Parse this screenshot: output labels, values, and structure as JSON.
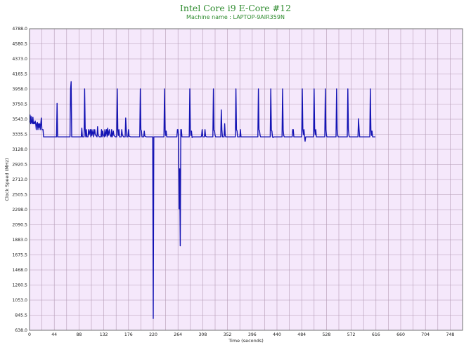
{
  "chart_data": {
    "type": "line",
    "title": "Intel Core i9 E-Core #12",
    "subtitle": "Machine name : LAPTOP-9AIR359N",
    "xlabel": "Time (seconds)",
    "ylabel": "Clock Speed (MHz)",
    "xlim": [
      0,
      770
    ],
    "ylim": [
      638.0,
      4788.0
    ],
    "xticks": [
      0,
      44,
      88,
      132,
      176,
      220,
      264,
      308,
      352,
      396,
      440,
      484,
      528,
      572,
      616,
      660,
      704,
      748
    ],
    "yticks": [
      "638.0",
      "845.5",
      "1053.0",
      "1260.5",
      "1468.0",
      "1675.5",
      "1883.0",
      "2090.5",
      "2298.0",
      "2505.5",
      "2713.0",
      "2920.5",
      "3128.0",
      "3335.5",
      "3543.0",
      "3750.5",
      "3958.0",
      "4165.5",
      "4373.0",
      "4580.5",
      "4788.0"
    ],
    "grid": true,
    "colors": {
      "line": "#1414b4",
      "plot_background": "#f5e8fb",
      "grid": "#b49ab4",
      "title": "#2e8b2e"
    },
    "series": [
      {
        "values": [
          [
            0,
            3500
          ],
          [
            1,
            3600
          ],
          [
            2,
            3480
          ],
          [
            3,
            3580
          ],
          [
            4,
            3500
          ],
          [
            5,
            3480
          ],
          [
            6,
            3570
          ],
          [
            7,
            3480
          ],
          [
            8,
            3500
          ],
          [
            9,
            3480
          ],
          [
            10,
            3520
          ],
          [
            11,
            3480
          ],
          [
            12,
            3400
          ],
          [
            13,
            3480
          ],
          [
            14,
            3500
          ],
          [
            15,
            3400
          ],
          [
            16,
            3480
          ],
          [
            17,
            3430
          ],
          [
            18,
            3480
          ],
          [
            19,
            3400
          ],
          [
            20,
            3480
          ],
          [
            21,
            3560
          ],
          [
            22,
            3400
          ],
          [
            24,
            3400
          ],
          [
            25,
            3300
          ],
          [
            48,
            3300
          ],
          [
            49,
            3760
          ],
          [
            50,
            3300
          ],
          [
            72,
            3300
          ],
          [
            73,
            3960
          ],
          [
            74,
            4060
          ],
          [
            75,
            3300
          ],
          [
            92,
            3300
          ],
          [
            93,
            3420
          ],
          [
            94,
            3300
          ],
          [
            97,
            3300
          ],
          [
            98,
            3960
          ],
          [
            99,
            3400
          ],
          [
            100,
            3300
          ],
          [
            101,
            3400
          ],
          [
            102,
            3300
          ],
          [
            104,
            3300
          ],
          [
            105,
            3400
          ],
          [
            106,
            3330
          ],
          [
            108,
            3400
          ],
          [
            109,
            3300
          ],
          [
            110,
            3400
          ],
          [
            111,
            3320
          ],
          [
            113,
            3400
          ],
          [
            114,
            3300
          ],
          [
            116,
            3400
          ],
          [
            117,
            3330
          ],
          [
            120,
            3300
          ],
          [
            121,
            3440
          ],
          [
            122,
            3330
          ],
          [
            124,
            3300
          ],
          [
            127,
            3300
          ],
          [
            128,
            3400
          ],
          [
            129,
            3300
          ],
          [
            130,
            3380
          ],
          [
            131,
            3330
          ],
          [
            133,
            3300
          ],
          [
            134,
            3400
          ],
          [
            135,
            3310
          ],
          [
            137,
            3400
          ],
          [
            138,
            3300
          ],
          [
            139,
            3420
          ],
          [
            140,
            3320
          ],
          [
            142,
            3400
          ],
          [
            143,
            3330
          ],
          [
            145,
            3300
          ],
          [
            146,
            3400
          ],
          [
            147,
            3300
          ],
          [
            149,
            3380
          ],
          [
            150,
            3320
          ],
          [
            153,
            3300
          ],
          [
            155,
            3300
          ],
          [
            156,
            3960
          ],
          [
            157,
            3400
          ],
          [
            158,
            3320
          ],
          [
            159,
            3400
          ],
          [
            160,
            3300
          ],
          [
            163,
            3300
          ],
          [
            164,
            3400
          ],
          [
            165,
            3330
          ],
          [
            167,
            3300
          ],
          [
            170,
            3300
          ],
          [
            171,
            3560
          ],
          [
            172,
            3400
          ],
          [
            173,
            3300
          ],
          [
            175,
            3300
          ],
          [
            176,
            3400
          ],
          [
            177,
            3310
          ],
          [
            180,
            3300
          ],
          [
            196,
            3300
          ],
          [
            197,
            3960
          ],
          [
            198,
            3400
          ],
          [
            199,
            3380
          ],
          [
            200,
            3300
          ],
          [
            203,
            3300
          ],
          [
            204,
            3380
          ],
          [
            205,
            3310
          ],
          [
            208,
            3300
          ],
          [
            219,
            3300
          ],
          [
            220,
            800
          ],
          [
            221,
            3300
          ],
          [
            239,
            3300
          ],
          [
            240,
            3960
          ],
          [
            241,
            3400
          ],
          [
            242,
            3320
          ],
          [
            243,
            3380
          ],
          [
            244,
            3300
          ],
          [
            262,
            3300
          ],
          [
            263,
            3400
          ],
          [
            264,
            3400
          ],
          [
            265,
            3300
          ],
          [
            266,
            2310
          ],
          [
            267,
            2860
          ],
          [
            268,
            1800
          ],
          [
            269,
            3400
          ],
          [
            270,
            3400
          ],
          [
            271,
            3300
          ],
          [
            284,
            3300
          ],
          [
            285,
            3960
          ],
          [
            286,
            3400
          ],
          [
            287,
            3320
          ],
          [
            288,
            3380
          ],
          [
            289,
            3290
          ],
          [
            290,
            3300
          ],
          [
            305,
            3300
          ],
          [
            306,
            3320
          ],
          [
            307,
            3400
          ],
          [
            308,
            3300
          ],
          [
            311,
            3300
          ],
          [
            312,
            3400
          ],
          [
            313,
            3310
          ],
          [
            315,
            3300
          ],
          [
            326,
            3300
          ],
          [
            327,
            3960
          ],
          [
            328,
            3390
          ],
          [
            329,
            3380
          ],
          [
            330,
            3320
          ],
          [
            331,
            3300
          ],
          [
            340,
            3300
          ],
          [
            341,
            3670
          ],
          [
            342,
            3400
          ],
          [
            343,
            3300
          ],
          [
            346,
            3300
          ],
          [
            347,
            3480
          ],
          [
            348,
            3320
          ],
          [
            349,
            3300
          ],
          [
            366,
            3300
          ],
          [
            367,
            3960
          ],
          [
            368,
            3400
          ],
          [
            369,
            3380
          ],
          [
            370,
            3300
          ],
          [
            374,
            3300
          ],
          [
            375,
            3400
          ],
          [
            376,
            3300
          ],
          [
            406,
            3300
          ],
          [
            407,
            3960
          ],
          [
            408,
            3400
          ],
          [
            409,
            3380
          ],
          [
            410,
            3320
          ],
          [
            411,
            3300
          ],
          [
            428,
            3300
          ],
          [
            429,
            3960
          ],
          [
            430,
            3390
          ],
          [
            431,
            3380
          ],
          [
            432,
            3300
          ],
          [
            433,
            3290
          ],
          [
            434,
            3300
          ],
          [
            449,
            3300
          ],
          [
            450,
            3960
          ],
          [
            451,
            3400
          ],
          [
            452,
            3320
          ],
          [
            453,
            3300
          ],
          [
            467,
            3300
          ],
          [
            468,
            3400
          ],
          [
            469,
            3400
          ],
          [
            470,
            3300
          ],
          [
            484,
            3300
          ],
          [
            485,
            3960
          ],
          [
            486,
            3400
          ],
          [
            487,
            3330
          ],
          [
            488,
            3400
          ],
          [
            489,
            3300
          ],
          [
            490,
            3240
          ],
          [
            491,
            3300
          ],
          [
            505,
            3300
          ],
          [
            506,
            3960
          ],
          [
            507,
            3400
          ],
          [
            508,
            3330
          ],
          [
            509,
            3400
          ],
          [
            510,
            3300
          ],
          [
            525,
            3300
          ],
          [
            526,
            3960
          ],
          [
            527,
            3400
          ],
          [
            528,
            3320
          ],
          [
            529,
            3300
          ],
          [
            545,
            3300
          ],
          [
            546,
            3960
          ],
          [
            547,
            3400
          ],
          [
            548,
            3320
          ],
          [
            549,
            3300
          ],
          [
            565,
            3300
          ],
          [
            566,
            3960
          ],
          [
            567,
            3400
          ],
          [
            568,
            3320
          ],
          [
            569,
            3300
          ],
          [
            584,
            3300
          ],
          [
            585,
            3550
          ],
          [
            586,
            3400
          ],
          [
            587,
            3300
          ],
          [
            605,
            3300
          ],
          [
            606,
            3960
          ],
          [
            607,
            3400
          ],
          [
            608,
            3320
          ],
          [
            609,
            3380
          ],
          [
            610,
            3300
          ],
          [
            615,
            3300
          ]
        ]
      }
    ]
  }
}
